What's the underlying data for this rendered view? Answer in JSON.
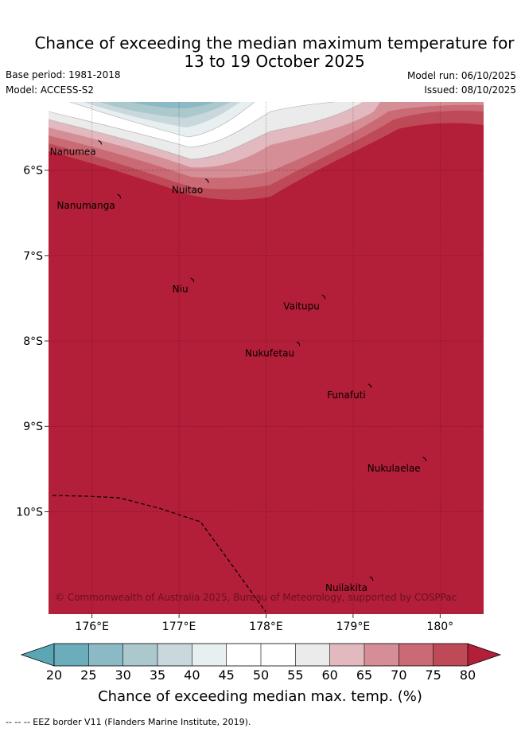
{
  "title": {
    "line1": "Chance of exceeding the median maximum temperature for",
    "line2": "13 to 19 October 2025"
  },
  "header": {
    "base_period": "Base period: 1981-2018",
    "model": "Model: ACCESS-S2",
    "model_run": "Model run: 06/10/2025",
    "issued": "Issued: 08/10/2025"
  },
  "map": {
    "lon_range": [
      175.5,
      180.5
    ],
    "lat_range": [
      -11.2,
      -5.2
    ],
    "x_ticks": [
      {
        "lon": 176,
        "label": "176°E"
      },
      {
        "lon": 177,
        "label": "177°E"
      },
      {
        "lon": 178,
        "label": "178°E"
      },
      {
        "lon": 179,
        "label": "179°E"
      },
      {
        "lon": 180,
        "label": "180°"
      }
    ],
    "y_ticks": [
      {
        "lat": -6,
        "label": "6°S"
      },
      {
        "lat": -7,
        "label": "7°S"
      },
      {
        "lat": -8,
        "label": "8°S"
      },
      {
        "lat": -9,
        "label": "9°S"
      },
      {
        "lat": -10,
        "label": "10°S"
      }
    ],
    "islands": [
      {
        "name": "Nanumea",
        "lon": 176.1,
        "lat": -5.67
      },
      {
        "name": "Nanumanga",
        "lon": 176.32,
        "lat": -6.3
      },
      {
        "name": "Nuitao",
        "lon": 177.33,
        "lat": -6.12
      },
      {
        "name": "Niu",
        "lon": 177.16,
        "lat": -7.28
      },
      {
        "name": "Vaitupu",
        "lon": 178.67,
        "lat": -7.48
      },
      {
        "name": "Nukufetau",
        "lon": 178.38,
        "lat": -8.03
      },
      {
        "name": "Funafuti",
        "lon": 179.2,
        "lat": -8.52
      },
      {
        "name": "Nukulaelae",
        "lon": 179.83,
        "lat": -9.38
      },
      {
        "name": "Nuilakita",
        "lon": 179.22,
        "lat": -10.78
      }
    ],
    "credit": "© Commonwealth of Australia 2025, Bureau of Meteorology, supported by COSPPac"
  },
  "colorbar": {
    "ticks": [
      "20",
      "25",
      "30",
      "35",
      "40",
      "45",
      "50",
      "55",
      "60",
      "65",
      "70",
      "75",
      "80"
    ],
    "colors": [
      "#6badbb",
      "#8cb9c6",
      "#abc8cd",
      "#c9d8dd",
      "#e8eff1",
      "#ffffff",
      "#ffffff",
      "#ecebec",
      "#e1b9bf",
      "#d68e96",
      "#c96a75",
      "#bf4a57",
      "#b31e38"
    ],
    "under_color": "#5aa6b5",
    "over_color": "#b31e38",
    "title": "Chance of exceeding median max. temp. (%)"
  },
  "legend": "--  --  -- EEZ border V11 (Flanders Marine Institute, 2019)."
}
